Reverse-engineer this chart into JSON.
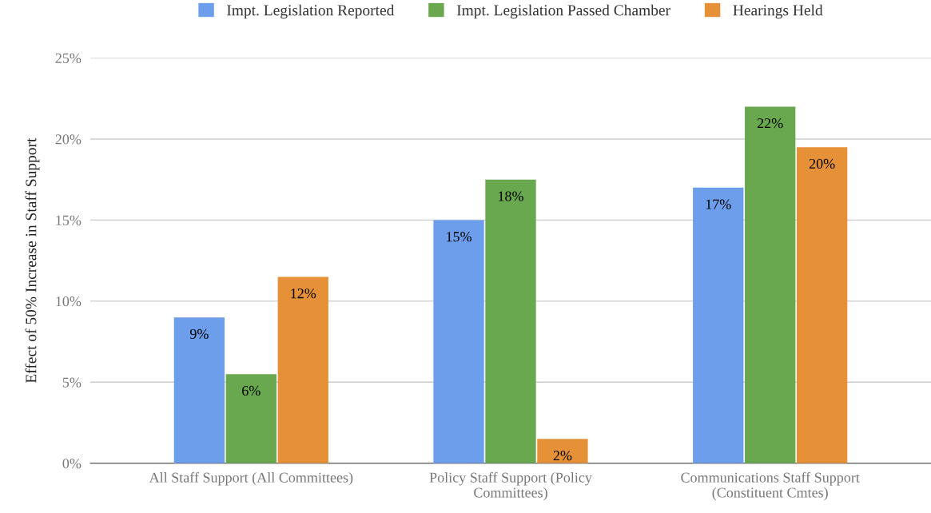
{
  "chart_data": {
    "type": "bar",
    "ylabel": "Effect of 50% Increase in Staff Support",
    "categories": [
      "All Staff Support (All Committees)",
      "Policy Staff Support (Policy\nCommittees)",
      "Communications Staff Support\n(Constituent Cmtes)"
    ],
    "series": [
      {
        "name": "Impt. Legislation Reported",
        "color": "#6d9eeb",
        "values": [
          9,
          15,
          17
        ],
        "value_labels": [
          "9%",
          "15%",
          "17%"
        ]
      },
      {
        "name": "Impt. Legislation Passed Chamber",
        "color": "#6aa84f",
        "values": [
          5.5,
          17.5,
          22
        ],
        "value_labels": [
          "6%",
          "18%",
          "22%"
        ]
      },
      {
        "name": "Hearings Held",
        "color": "#e69138",
        "values": [
          11.5,
          1.5,
          19.5
        ],
        "value_labels": [
          "12%",
          "2%",
          "20%"
        ]
      }
    ],
    "ylim": [
      0,
      25
    ],
    "yticks": [
      {
        "value": 0,
        "label": "0%"
      },
      {
        "value": 5,
        "label": "5%"
      },
      {
        "value": 10,
        "label": "10%"
      },
      {
        "value": 15,
        "label": "15%"
      },
      {
        "value": 20,
        "label": "20%"
      },
      {
        "value": 25,
        "label": "25%"
      }
    ],
    "grid": "y",
    "legend": "top"
  }
}
